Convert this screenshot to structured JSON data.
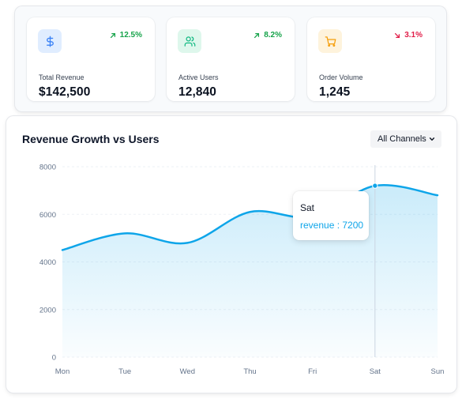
{
  "stats": [
    {
      "label": "Total Revenue",
      "value": "$142,500",
      "change": "12.5%",
      "trend": "up",
      "icon": "dollar-icon",
      "color": "#16a34a",
      "icon_color": "#3b82f6",
      "icon_bg": "#e0edff"
    },
    {
      "label": "Active Users",
      "value": "12,840",
      "change": "8.2%",
      "trend": "up",
      "icon": "users-icon",
      "color": "#16a34a",
      "icon_color": "#10b981",
      "icon_bg": "#def7ec"
    },
    {
      "label": "Order Volume",
      "value": "1,245",
      "change": "3.1%",
      "trend": "down",
      "icon": "cart-icon",
      "color": "#e11d48",
      "icon_color": "#f59e0b",
      "icon_bg": "#fef3dc"
    }
  ],
  "chart": {
    "title": "Revenue Growth vs Users",
    "filter": {
      "selected": "All Channels"
    }
  },
  "chart_data": {
    "type": "area",
    "title": "Revenue Growth vs Users",
    "categories": [
      "Mon",
      "Tue",
      "Wed",
      "Thu",
      "Fri",
      "Sat",
      "Sun"
    ],
    "series": [
      {
        "values": [
          4500,
          5200,
          4800,
          6100,
          5900,
          7200,
          6800
        ],
        "color": "#0ea5e9"
      }
    ],
    "ylim": [
      0,
      8000
    ],
    "yticks": [
      "0",
      "2000",
      "4000",
      "6000",
      "8000"
    ],
    "grid": true,
    "tooltip": {
      "category": "Sat",
      "label": "revenue : 7200"
    }
  }
}
